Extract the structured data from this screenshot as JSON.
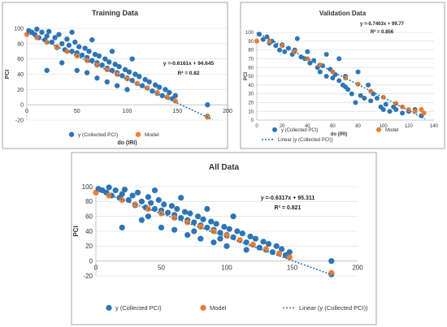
{
  "colors": {
    "collected": "#2e75b6",
    "model": "#ed7d31",
    "trend": "#2e75b6"
  },
  "chart_data": [
    {
      "type": "scatter",
      "id": "training",
      "title": "Training  Data",
      "xlabel": "do (IRI)",
      "ylabel": "PCI",
      "xlim": [
        0,
        200
      ],
      "ylim": [
        -20,
        100
      ],
      "xticks": [
        "0",
        "50",
        "100",
        "150",
        "200"
      ],
      "yticks": [
        "-20",
        "0",
        "20",
        "40",
        "60",
        "80",
        "100"
      ],
      "equation": "y =-0.6161x + 94.645",
      "r2": "R² = 0.82",
      "legend": [
        "y (Collected PCI)",
        "Model"
      ],
      "trend": {
        "slope": -0.6161,
        "intercept": 94.645,
        "x_range": [
          0,
          185
        ]
      },
      "collected": [
        [
          2,
          97
        ],
        [
          5,
          95
        ],
        [
          8,
          92
        ],
        [
          10,
          99
        ],
        [
          12,
          88
        ],
        [
          15,
          95
        ],
        [
          18,
          85
        ],
        [
          20,
          90
        ],
        [
          22,
          96
        ],
        [
          25,
          82
        ],
        [
          28,
          88
        ],
        [
          30,
          75
        ],
        [
          32,
          92
        ],
        [
          35,
          80
        ],
        [
          38,
          72
        ],
        [
          40,
          86
        ],
        [
          42,
          78
        ],
        [
          45,
          70
        ],
        [
          48,
          82
        ],
        [
          50,
          68
        ],
        [
          52,
          76
        ],
        [
          55,
          65
        ],
        [
          58,
          74
        ],
        [
          60,
          62
        ],
        [
          62,
          70
        ],
        [
          65,
          58
        ],
        [
          68,
          66
        ],
        [
          70,
          55
        ],
        [
          72,
          64
        ],
        [
          75,
          52
        ],
        [
          78,
          60
        ],
        [
          80,
          48
        ],
        [
          82,
          56
        ],
        [
          85,
          45
        ],
        [
          88,
          53
        ],
        [
          90,
          42
        ],
        [
          92,
          50
        ],
        [
          95,
          38
        ],
        [
          98,
          46
        ],
        [
          100,
          35
        ],
        [
          102,
          43
        ],
        [
          105,
          32
        ],
        [
          108,
          40
        ],
        [
          110,
          28
        ],
        [
          112,
          37
        ],
        [
          115,
          25
        ],
        [
          118,
          33
        ],
        [
          120,
          22
        ],
        [
          122,
          30
        ],
        [
          125,
          18
        ],
        [
          128,
          26
        ],
        [
          130,
          15
        ],
        [
          132,
          23
        ],
        [
          135,
          12
        ],
        [
          138,
          20
        ],
        [
          140,
          10
        ],
        [
          142,
          16
        ],
        [
          145,
          8
        ],
        [
          148,
          12
        ],
        [
          20,
          45
        ],
        [
          35,
          55
        ],
        [
          50,
          45
        ],
        [
          60,
          42
        ],
        [
          70,
          35
        ],
        [
          80,
          30
        ],
        [
          90,
          25
        ],
        [
          100,
          20
        ],
        [
          45,
          95
        ],
        [
          65,
          85
        ],
        [
          85,
          70
        ],
        [
          105,
          60
        ],
        [
          180,
          0
        ],
        [
          180,
          -15
        ]
      ],
      "model": [
        [
          0,
          92
        ],
        [
          10,
          88
        ],
        [
          20,
          82
        ],
        [
          30,
          76
        ],
        [
          40,
          70
        ],
        [
          50,
          64
        ],
        [
          60,
          58
        ],
        [
          70,
          52
        ],
        [
          80,
          46
        ],
        [
          90,
          40
        ],
        [
          100,
          34
        ],
        [
          110,
          28
        ],
        [
          120,
          22
        ],
        [
          130,
          16
        ],
        [
          140,
          10
        ],
        [
          148,
          5
        ],
        [
          180,
          -16
        ]
      ]
    },
    {
      "type": "scatter",
      "id": "validation",
      "title": "Validation Data",
      "xlabel": "do (IRI)",
      "ylabel": "PCI",
      "xlim": [
        0,
        140
      ],
      "ylim": [
        0,
        100
      ],
      "xticks": [
        "0",
        "20",
        "40",
        "60",
        "80",
        "100",
        "120",
        "140"
      ],
      "yticks": [
        "0",
        "10",
        "20",
        "30",
        "40",
        "50",
        "60",
        "70",
        "80",
        "90",
        "100"
      ],
      "equation": "y =-0.7403x + 99.77",
      "r2": "R² = 0.856",
      "legend": [
        "y (Collected PCI)",
        "Model",
        "Linear (y (Collected PCI))"
      ],
      "trend": {
        "slope": -0.7403,
        "intercept": 99.77,
        "x_range": [
          0,
          133
        ]
      },
      "collected": [
        [
          2,
          98
        ],
        [
          5,
          92
        ],
        [
          8,
          95
        ],
        [
          10,
          88
        ],
        [
          12,
          90
        ],
        [
          15,
          85
        ],
        [
          18,
          80
        ],
        [
          20,
          86
        ],
        [
          22,
          78
        ],
        [
          25,
          82
        ],
        [
          28,
          75
        ],
        [
          30,
          80
        ],
        [
          32,
          93
        ],
        [
          35,
          72
        ],
        [
          38,
          70
        ],
        [
          40,
          78
        ],
        [
          42,
          65
        ],
        [
          45,
          68
        ],
        [
          48,
          60
        ],
        [
          50,
          55
        ],
        [
          52,
          62
        ],
        [
          55,
          50
        ],
        [
          58,
          58
        ],
        [
          60,
          48
        ],
        [
          62,
          52
        ],
        [
          65,
          45
        ],
        [
          68,
          40
        ],
        [
          70,
          38
        ],
        [
          72,
          35
        ],
        [
          75,
          30
        ],
        [
          78,
          20
        ],
        [
          80,
          55
        ],
        [
          82,
          28
        ],
        [
          85,
          25
        ],
        [
          88,
          40
        ],
        [
          90,
          22
        ],
        [
          92,
          30
        ],
        [
          95,
          25
        ],
        [
          98,
          15
        ],
        [
          100,
          12
        ],
        [
          102,
          18
        ],
        [
          105,
          10
        ],
        [
          108,
          15
        ],
        [
          110,
          12
        ],
        [
          115,
          8
        ],
        [
          120,
          10
        ],
        [
          125,
          12
        ],
        [
          130,
          5
        ],
        [
          55,
          75
        ],
        [
          65,
          70
        ],
        [
          70,
          50
        ]
      ],
      "model": [
        [
          0,
          90
        ],
        [
          10,
          90
        ],
        [
          20,
          85
        ],
        [
          30,
          78
        ],
        [
          40,
          70
        ],
        [
          50,
          63
        ],
        [
          60,
          55
        ],
        [
          70,
          48
        ],
        [
          80,
          41
        ],
        [
          90,
          33
        ],
        [
          100,
          26
        ],
        [
          110,
          19
        ],
        [
          115,
          15
        ],
        [
          120,
          12
        ],
        [
          125,
          10
        ],
        [
          130,
          12
        ],
        [
          132,
          8
        ]
      ]
    },
    {
      "type": "scatter",
      "id": "all",
      "title": "All Data",
      "xlabel": "",
      "ylabel": "PCI",
      "xlim": [
        0,
        200
      ],
      "ylim": [
        -20,
        100
      ],
      "xticks": [
        "0",
        "50",
        "100",
        "150",
        "200"
      ],
      "yticks": [
        "-20",
        "0",
        "20",
        "40",
        "60",
        "80",
        "100"
      ],
      "equation": "y =-0.6317x + 95.311",
      "r2": "R² = 0.821",
      "legend": [
        "y (Collected PCI)",
        "Model",
        "Linear (y (Collected PCI))"
      ],
      "trend": {
        "slope": -0.6317,
        "intercept": 95.311,
        "x_range": [
          0,
          182
        ]
      },
      "collected": [
        [
          2,
          97
        ],
        [
          5,
          95
        ],
        [
          8,
          92
        ],
        [
          10,
          99
        ],
        [
          12,
          88
        ],
        [
          15,
          95
        ],
        [
          18,
          85
        ],
        [
          20,
          90
        ],
        [
          22,
          96
        ],
        [
          25,
          82
        ],
        [
          28,
          88
        ],
        [
          30,
          75
        ],
        [
          32,
          92
        ],
        [
          35,
          80
        ],
        [
          38,
          72
        ],
        [
          40,
          86
        ],
        [
          42,
          78
        ],
        [
          45,
          70
        ],
        [
          48,
          82
        ],
        [
          50,
          68
        ],
        [
          52,
          76
        ],
        [
          55,
          65
        ],
        [
          58,
          74
        ],
        [
          60,
          62
        ],
        [
          62,
          70
        ],
        [
          65,
          58
        ],
        [
          68,
          66
        ],
        [
          70,
          55
        ],
        [
          72,
          64
        ],
        [
          75,
          52
        ],
        [
          78,
          60
        ],
        [
          80,
          48
        ],
        [
          82,
          56
        ],
        [
          85,
          45
        ],
        [
          88,
          53
        ],
        [
          90,
          42
        ],
        [
          92,
          50
        ],
        [
          95,
          38
        ],
        [
          98,
          46
        ],
        [
          100,
          35
        ],
        [
          102,
          43
        ],
        [
          105,
          32
        ],
        [
          108,
          40
        ],
        [
          110,
          28
        ],
        [
          112,
          37
        ],
        [
          115,
          25
        ],
        [
          118,
          33
        ],
        [
          120,
          22
        ],
        [
          122,
          30
        ],
        [
          125,
          18
        ],
        [
          128,
          26
        ],
        [
          130,
          15
        ],
        [
          132,
          23
        ],
        [
          135,
          12
        ],
        [
          138,
          20
        ],
        [
          140,
          10
        ],
        [
          142,
          16
        ],
        [
          145,
          8
        ],
        [
          148,
          12
        ],
        [
          20,
          45
        ],
        [
          35,
          55
        ],
        [
          50,
          45
        ],
        [
          60,
          42
        ],
        [
          70,
          35
        ],
        [
          80,
          30
        ],
        [
          90,
          25
        ],
        [
          100,
          20
        ],
        [
          45,
          95
        ],
        [
          65,
          85
        ],
        [
          85,
          70
        ],
        [
          105,
          60
        ],
        [
          180,
          0
        ],
        [
          180,
          -18
        ],
        [
          40,
          60
        ],
        [
          75,
          40
        ],
        [
          95,
          30
        ],
        [
          115,
          15
        ]
      ],
      "model": [
        [
          0,
          92
        ],
        [
          10,
          88
        ],
        [
          20,
          82
        ],
        [
          30,
          76
        ],
        [
          40,
          70
        ],
        [
          50,
          64
        ],
        [
          60,
          58
        ],
        [
          70,
          52
        ],
        [
          80,
          46
        ],
        [
          90,
          40
        ],
        [
          100,
          34
        ],
        [
          110,
          28
        ],
        [
          120,
          22
        ],
        [
          130,
          16
        ],
        [
          140,
          10
        ],
        [
          148,
          5
        ],
        [
          180,
          -16
        ]
      ]
    }
  ]
}
